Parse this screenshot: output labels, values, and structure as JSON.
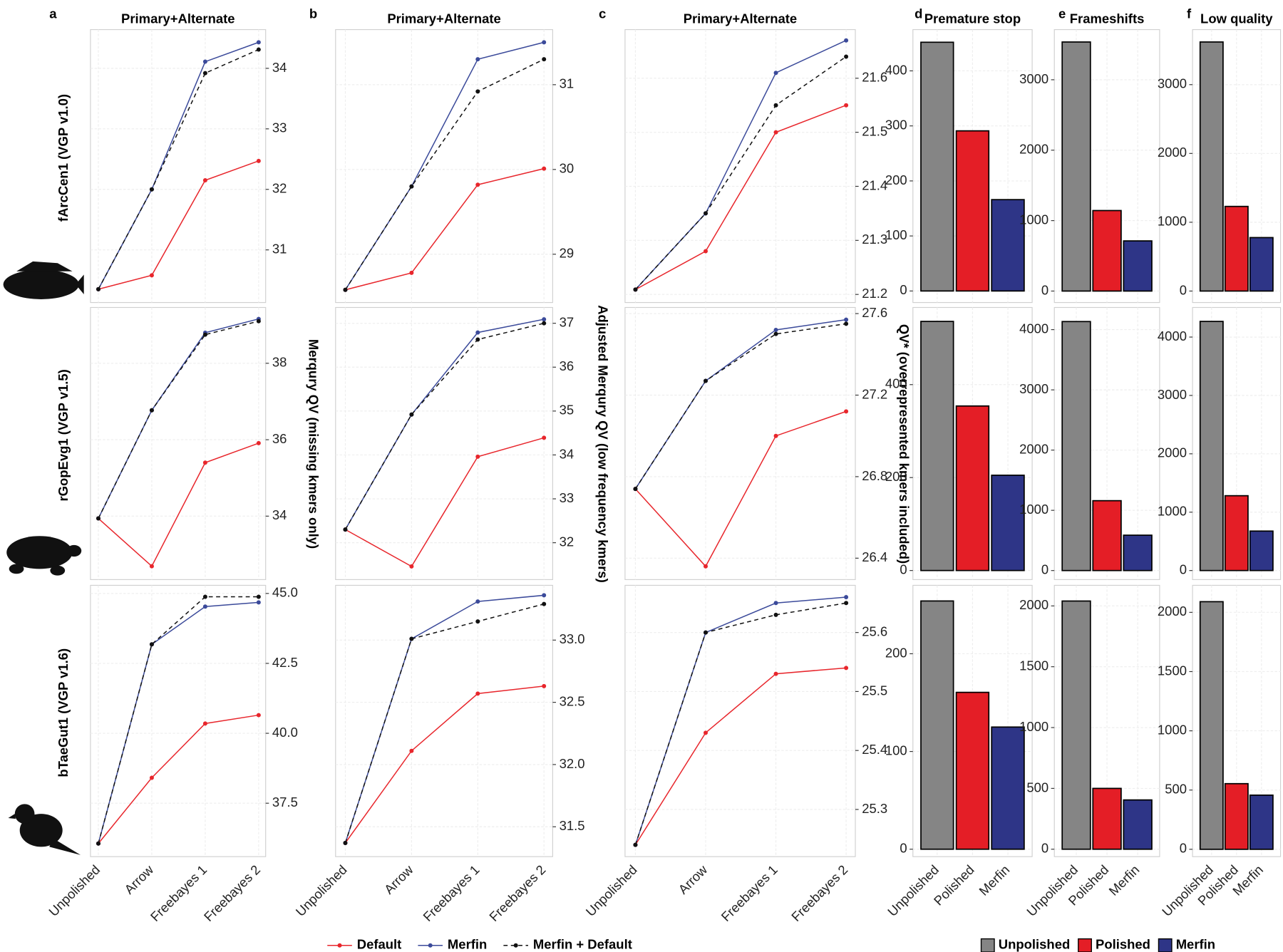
{
  "chart_data": [
    {
      "type": "line",
      "panel_label": "a",
      "title": "Primary+Alternate",
      "ylabel": "Merqury QV (missing kmers only)",
      "row_labels": [
        "fArcCen1 (VGP v1.0)",
        "rGopEvg1 (VGP v1.5)",
        "bTaeGut1 (VGP v1.6)"
      ],
      "categories": [
        "Unpolished",
        "Arrow",
        "Freebayes 1",
        "Freebayes 2"
      ],
      "grid": true,
      "series": [
        {
          "name": "Default",
          "color": "#e8262c",
          "dashed": false,
          "values": [
            [
              30.35,
              30.58,
              32.15,
              32.47
            ],
            [
              33.94,
              32.69,
              35.4,
              35.91
            ],
            [
              36.06,
              38.41,
              40.35,
              40.65
            ]
          ]
        },
        {
          "name": "Merfin",
          "color": "#3b4a9a",
          "dashed": false,
          "values": [
            [
              30.35,
              32.0,
              34.11,
              34.43
            ],
            [
              33.94,
              36.77,
              38.8,
              39.16
            ],
            [
              36.06,
              43.18,
              44.53,
              44.68
            ]
          ]
        },
        {
          "name": "Merfin + Default",
          "color": "#111111",
          "dashed": true,
          "values": [
            [
              30.35,
              32.0,
              33.92,
              34.31
            ],
            [
              33.94,
              36.77,
              38.75,
              39.1
            ],
            [
              36.06,
              43.18,
              44.88,
              44.88
            ]
          ]
        }
      ],
      "panels": [
        {
          "ylim": [
            30.13,
            34.64
          ],
          "yticks": [
            31,
            32,
            33,
            34
          ]
        },
        {
          "ylim": [
            32.34,
            39.46
          ],
          "yticks": [
            34,
            36,
            38
          ]
        },
        {
          "ylim": [
            35.59,
            45.29
          ],
          "yticks": [
            37.5,
            {
              "value": 40,
              "label": "40.0"
            },
            42.5,
            {
              "value": 45,
              "label": "45.0"
            }
          ]
        }
      ]
    },
    {
      "type": "line",
      "panel_label": "b",
      "title": "Primary+Alternate",
      "ylabel": "Adjusted Merqury QV (low frequency kmers)",
      "categories": [
        "Unpolished",
        "Arrow",
        "Freebayes 1",
        "Freebayes 2"
      ],
      "grid": true,
      "series": [
        {
          "color": "#e8262c",
          "dashed": false,
          "values": [
            [
              28.58,
              28.78,
              29.82,
              30.01
            ],
            [
              32.3,
              31.46,
              33.96,
              34.39
            ],
            [
              31.37,
              32.11,
              32.57,
              32.63
            ]
          ]
        },
        {
          "color": "#3b4a9a",
          "dashed": false,
          "values": [
            [
              28.58,
              29.8,
              31.3,
              31.5
            ],
            [
              32.3,
              34.92,
              36.79,
              37.09
            ],
            [
              31.37,
              33.01,
              33.31,
              33.36
            ]
          ]
        },
        {
          "color": "#111111",
          "dashed": true,
          "values": [
            [
              28.58,
              29.8,
              30.92,
              31.3
            ],
            [
              32.3,
              34.92,
              36.63,
              37.0
            ],
            [
              31.37,
              33.01,
              33.15,
              33.29
            ]
          ]
        }
      ],
      "panels": [
        {
          "ylim": [
            28.43,
            31.65
          ],
          "yticks": [
            29,
            30,
            31
          ]
        },
        {
          "ylim": [
            31.16,
            37.36
          ],
          "yticks": [
            32,
            33,
            34,
            35,
            36,
            37
          ]
        },
        {
          "ylim": [
            31.26,
            33.44
          ],
          "yticks": [
            31.5,
            {
              "value": 32,
              "label": "32.0"
            },
            32.5,
            {
              "value": 33,
              "label": "33.0"
            }
          ]
        }
      ]
    },
    {
      "type": "line",
      "panel_label": "c",
      "title": "Primary+Alternate",
      "ylabel": "QV* (overrepresented kmers included)",
      "categories": [
        "Unpolished",
        "Arrow",
        "Freebayes 1",
        "Freebayes 2"
      ],
      "grid": true,
      "series": [
        {
          "color": "#e8262c",
          "dashed": false,
          "values": [
            [
              21.209,
              21.28,
              21.5,
              21.55
            ],
            [
              26.74,
              26.36,
              27.0,
              27.12
            ],
            [
              25.24,
              25.43,
              25.53,
              25.54
            ]
          ]
        },
        {
          "color": "#3b4a9a",
          "dashed": false,
          "values": [
            [
              21.209,
              21.35,
              21.61,
              21.67
            ],
            [
              26.74,
              27.27,
              27.52,
              27.57
            ],
            [
              25.24,
              25.6,
              25.65,
              25.66
            ]
          ]
        },
        {
          "color": "#111111",
          "dashed": true,
          "values": [
            [
              21.209,
              21.35,
              21.55,
              21.64
            ],
            [
              26.74,
              27.27,
              27.5,
              27.55
            ],
            [
              25.24,
              25.6,
              25.63,
              25.65
            ]
          ]
        }
      ],
      "panels": [
        {
          "ylim": [
            21.185,
            21.69
          ],
          "yticks": [
            21.2,
            21.3,
            21.4,
            21.5,
            21.6
          ]
        },
        {
          "ylim": [
            26.295,
            27.63
          ],
          "yticks": [
            26.4,
            26.8,
            27.2,
            27.6
          ]
        },
        {
          "ylim": [
            25.22,
            25.68
          ],
          "yticks": [
            25.3,
            25.4,
            25.5,
            25.6
          ]
        }
      ]
    },
    {
      "type": "bar",
      "panel_label": "d",
      "title": "Premature stop",
      "categories": [
        "Unpolished",
        "Polished",
        "Merfin"
      ],
      "colors": [
        "#858585",
        "#e41e26",
        "#2e3587"
      ],
      "grid": true,
      "values": [
        [
          452,
          291,
          166
        ],
        [
          536,
          354,
          205
        ],
        [
          254,
          160.5,
          125
        ]
      ],
      "panels": [
        {
          "ylim": [
            -21,
            475
          ],
          "yticks": [
            0,
            100,
            200,
            300,
            400
          ]
        },
        {
          "ylim": [
            -19.5,
            566
          ],
          "yticks": [
            0,
            200,
            400
          ]
        },
        {
          "ylim": [
            -7.6,
            270
          ],
          "yticks": [
            0,
            100,
            200
          ]
        }
      ]
    },
    {
      "type": "bar",
      "panel_label": "e",
      "title": "Frameshifts",
      "categories": [
        "Unpolished",
        "Polished",
        "Merfin"
      ],
      "colors": [
        "#858585",
        "#e41e26",
        "#2e3587"
      ],
      "grid": true,
      "values": [
        [
          3536,
          1143,
          712
        ],
        [
          4134,
          1160,
          587
        ],
        [
          2040,
          500,
          405
        ]
      ],
      "panels": [
        {
          "ylim": [
            -163,
            3712
          ],
          "yticks": [
            0,
            1000,
            2000,
            3000
          ]
        },
        {
          "ylim": [
            -150,
            4368
          ],
          "yticks": [
            0,
            1000,
            2000,
            3000,
            4000
          ]
        },
        {
          "ylim": [
            -61,
            2169
          ],
          "yticks": [
            0,
            500,
            1000,
            1500,
            2000
          ]
        }
      ]
    },
    {
      "type": "bar",
      "panel_label": "f",
      "title": "Low quality",
      "categories": [
        "Unpolished",
        "Polished",
        "Merfin"
      ],
      "colors": [
        "#858585",
        "#e41e26",
        "#2e3587"
      ],
      "grid": true,
      "values": [
        [
          3620,
          1230,
          777
        ],
        [
          4268,
          1282,
          676
        ],
        [
          2090,
          554,
          457
        ]
      ],
      "panels": [
        {
          "ylim": [
            -167,
            3800
          ],
          "yticks": [
            0,
            1000,
            2000,
            3000
          ]
        },
        {
          "ylim": [
            -155,
            4507
          ],
          "yticks": [
            0,
            1000,
            2000,
            3000,
            4000
          ]
        },
        {
          "ylim": [
            -62,
            2228
          ],
          "yticks": [
            0,
            500,
            1000,
            1500,
            2000
          ]
        }
      ]
    }
  ]
}
